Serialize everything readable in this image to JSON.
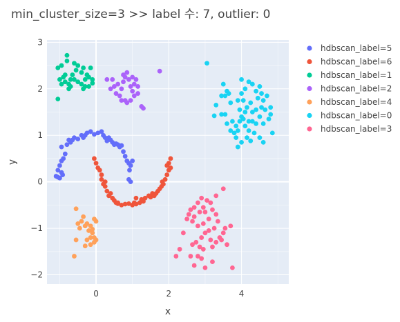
{
  "chart_data": {
    "type": "scatter",
    "title": "min_cluster_size=3 >> label 수: 7, outlier: 0",
    "xlabel": "x",
    "ylabel": "y",
    "xlim": [
      -1.35,
      5.3
    ],
    "ylim": [
      -2.2,
      3.05
    ],
    "xticks": [
      0,
      2,
      4
    ],
    "yticks": [
      -2,
      -1,
      0,
      1,
      2,
      3
    ],
    "grid": true,
    "legend_position": "right",
    "series": [
      {
        "name": "hdbscan_label=5",
        "color": "#636efa",
        "points": [
          [
            -0.95,
            0.75
          ],
          [
            -1.0,
            0.35
          ],
          [
            -0.95,
            0.45
          ],
          [
            -0.9,
            0.5
          ],
          [
            -0.85,
            0.6
          ],
          [
            -0.8,
            0.8
          ],
          [
            -0.75,
            0.9
          ],
          [
            -0.7,
            0.85
          ],
          [
            -0.65,
            0.9
          ],
          [
            -0.6,
            0.95
          ],
          [
            -0.5,
            0.92
          ],
          [
            -0.4,
            1.0
          ],
          [
            -0.35,
            0.95
          ],
          [
            -0.3,
            1.0
          ],
          [
            -0.25,
            1.05
          ],
          [
            -0.15,
            1.08
          ],
          [
            -0.05,
            1.02
          ],
          [
            0.05,
            1.05
          ],
          [
            0.15,
            1.08
          ],
          [
            0.2,
            1.0
          ],
          [
            0.25,
            0.95
          ],
          [
            0.3,
            0.88
          ],
          [
            0.35,
            0.95
          ],
          [
            0.4,
            0.9
          ],
          [
            0.45,
            0.85
          ],
          [
            0.5,
            0.8
          ],
          [
            0.55,
            0.82
          ],
          [
            0.6,
            0.8
          ],
          [
            0.65,
            0.75
          ],
          [
            0.7,
            0.78
          ],
          [
            0.75,
            0.65
          ],
          [
            0.8,
            0.55
          ],
          [
            0.85,
            0.45
          ],
          [
            0.9,
            0.4
          ],
          [
            0.95,
            0.35
          ],
          [
            1.0,
            0.45
          ],
          [
            -1.05,
            0.1
          ],
          [
            -1.0,
            0.08
          ],
          [
            -1.1,
            0.12
          ],
          [
            -1.05,
            0.25
          ],
          [
            -0.95,
            0.2
          ],
          [
            -0.92,
            0.15
          ],
          [
            0.9,
            0.05
          ],
          [
            0.95,
            0.0
          ],
          [
            0.92,
            0.25
          ]
        ]
      },
      {
        "name": "hdbscan_label=6",
        "color": "#ef553b",
        "points": [
          [
            -0.05,
            0.5
          ],
          [
            0.0,
            0.4
          ],
          [
            0.05,
            0.3
          ],
          [
            0.1,
            0.25
          ],
          [
            0.15,
            0.15
          ],
          [
            0.15,
            0.05
          ],
          [
            0.2,
            -0.05
          ],
          [
            0.25,
            -0.1
          ],
          [
            0.3,
            -0.2
          ],
          [
            0.35,
            -0.3
          ],
          [
            0.4,
            -0.25
          ],
          [
            0.45,
            -0.35
          ],
          [
            0.5,
            -0.4
          ],
          [
            0.55,
            -0.45
          ],
          [
            0.6,
            -0.47
          ],
          [
            0.7,
            -0.5
          ],
          [
            0.8,
            -0.48
          ],
          [
            0.9,
            -0.47
          ],
          [
            1.0,
            -0.5
          ],
          [
            1.05,
            -0.45
          ],
          [
            1.1,
            -0.48
          ],
          [
            1.2,
            -0.45
          ],
          [
            1.25,
            -0.38
          ],
          [
            1.3,
            -0.42
          ],
          [
            1.35,
            -0.35
          ],
          [
            1.45,
            -0.3
          ],
          [
            1.5,
            -0.33
          ],
          [
            1.55,
            -0.25
          ],
          [
            1.6,
            -0.3
          ],
          [
            1.65,
            -0.25
          ],
          [
            1.7,
            -0.2
          ],
          [
            1.75,
            -0.15
          ],
          [
            1.8,
            -0.1
          ],
          [
            1.85,
            -0.05
          ],
          [
            1.82,
            0.0
          ],
          [
            1.9,
            0.05
          ],
          [
            1.95,
            0.15
          ],
          [
            2.0,
            0.25
          ],
          [
            2.05,
            0.3
          ],
          [
            2.0,
            0.4
          ],
          [
            2.05,
            0.5
          ],
          [
            1.95,
            0.35
          ],
          [
            0.25,
            0.0
          ],
          [
            0.6,
            -0.45
          ],
          [
            1.1,
            -0.35
          ]
        ]
      },
      {
        "name": "hdbscan_label=1",
        "color": "#00cc96",
        "points": [
          [
            -0.8,
            2.72
          ],
          [
            -1.05,
            2.45
          ],
          [
            -0.95,
            2.5
          ],
          [
            -0.9,
            2.25
          ],
          [
            -1.0,
            2.2
          ],
          [
            -0.85,
            2.15
          ],
          [
            -0.75,
            2.1
          ],
          [
            -0.7,
            2.2
          ],
          [
            -0.65,
            2.3
          ],
          [
            -0.6,
            2.2
          ],
          [
            -0.55,
            2.4
          ],
          [
            -0.5,
            2.5
          ],
          [
            -0.4,
            2.35
          ],
          [
            -0.35,
            2.45
          ],
          [
            -0.3,
            2.2
          ],
          [
            -0.25,
            2.3
          ],
          [
            -0.2,
            2.25
          ],
          [
            -0.15,
            2.45
          ],
          [
            -0.1,
            2.12
          ],
          [
            -0.1,
            2.2
          ],
          [
            -0.2,
            2.05
          ],
          [
            -0.35,
            2.0
          ],
          [
            -0.4,
            2.1
          ],
          [
            -0.7,
            2.05
          ],
          [
            -0.75,
            2.0
          ],
          [
            -0.95,
            2.1
          ],
          [
            -1.05,
            1.78
          ],
          [
            -0.8,
            2.6
          ],
          [
            -0.6,
            2.55
          ],
          [
            -0.3,
            2.05
          ],
          [
            -0.5,
            2.15
          ],
          [
            -0.85,
            2.3
          ]
        ]
      },
      {
        "name": "hdbscan_label=2",
        "color": "#ab63fa",
        "points": [
          [
            0.75,
            2.3
          ],
          [
            0.85,
            2.35
          ],
          [
            0.8,
            2.25
          ],
          [
            0.9,
            2.2
          ],
          [
            1.0,
            2.25
          ],
          [
            1.1,
            2.2
          ],
          [
            1.05,
            2.1
          ],
          [
            0.95,
            2.05
          ],
          [
            1.0,
            1.95
          ],
          [
            0.7,
            2.0
          ],
          [
            0.6,
            2.1
          ],
          [
            0.5,
            2.05
          ],
          [
            0.4,
            2.0
          ],
          [
            0.45,
            2.2
          ],
          [
            0.55,
            1.9
          ],
          [
            0.65,
            1.85
          ],
          [
            0.8,
            1.75
          ],
          [
            0.85,
            1.7
          ],
          [
            0.95,
            1.75
          ],
          [
            0.7,
            1.75
          ],
          [
            1.15,
            2.05
          ],
          [
            1.15,
            1.9
          ],
          [
            1.3,
            1.58
          ],
          [
            1.25,
            1.62
          ],
          [
            1.75,
            2.38
          ],
          [
            0.3,
            2.2
          ],
          [
            0.75,
            2.15
          ],
          [
            1.05,
            1.85
          ]
        ]
      },
      {
        "name": "hdbscan_label=4",
        "color": "#ffa15a",
        "points": [
          [
            -0.55,
            -0.58
          ],
          [
            -0.35,
            -0.75
          ],
          [
            -0.4,
            -0.85
          ],
          [
            -0.5,
            -0.9
          ],
          [
            -0.45,
            -1.0
          ],
          [
            -0.3,
            -0.95
          ],
          [
            -0.25,
            -0.9
          ],
          [
            -0.2,
            -1.05
          ],
          [
            -0.15,
            -0.95
          ],
          [
            -0.1,
            -1.1
          ],
          [
            -0.05,
            -1.2
          ],
          [
            0.0,
            -1.25
          ],
          [
            -0.05,
            -0.8
          ],
          [
            0.0,
            -0.85
          ],
          [
            -0.15,
            -1.2
          ],
          [
            -0.25,
            -1.25
          ],
          [
            -0.3,
            -1.38
          ],
          [
            -0.15,
            -1.35
          ],
          [
            -0.05,
            -1.3
          ],
          [
            -0.55,
            -1.25
          ],
          [
            -0.6,
            -1.6
          ],
          [
            -0.1,
            -1.02
          ]
        ]
      },
      {
        "name": "hdbscan_label=0",
        "color": "#19d3f3",
        "points": [
          [
            3.05,
            2.55
          ],
          [
            3.5,
            2.1
          ],
          [
            3.6,
            1.95
          ],
          [
            3.55,
            1.85
          ],
          [
            3.45,
            1.85
          ],
          [
            3.7,
            1.7
          ],
          [
            3.9,
            1.75
          ],
          [
            4.0,
            1.9
          ],
          [
            4.1,
            2.0
          ],
          [
            4.2,
            2.15
          ],
          [
            4.3,
            2.1
          ],
          [
            4.4,
            1.95
          ],
          [
            4.5,
            2.05
          ],
          [
            4.55,
            1.9
          ],
          [
            4.6,
            1.75
          ],
          [
            4.7,
            1.85
          ],
          [
            4.8,
            1.6
          ],
          [
            4.8,
            1.45
          ],
          [
            4.75,
            1.35
          ],
          [
            4.6,
            1.25
          ],
          [
            4.65,
            1.55
          ],
          [
            4.5,
            1.4
          ],
          [
            4.4,
            1.55
          ],
          [
            4.3,
            1.5
          ],
          [
            4.2,
            1.3
          ],
          [
            4.1,
            1.2
          ],
          [
            4.0,
            1.4
          ],
          [
            3.95,
            1.55
          ],
          [
            3.9,
            1.1
          ],
          [
            3.85,
            1.2
          ],
          [
            3.8,
            1.05
          ],
          [
            3.7,
            1.1
          ],
          [
            3.75,
            1.3
          ],
          [
            3.6,
            1.25
          ],
          [
            3.55,
            1.45
          ],
          [
            3.45,
            1.45
          ],
          [
            3.3,
            1.65
          ],
          [
            3.25,
            1.42
          ],
          [
            4.05,
            1.35
          ],
          [
            4.2,
            1.1
          ],
          [
            4.35,
            1.05
          ],
          [
            4.4,
            1.25
          ],
          [
            4.15,
            0.95
          ],
          [
            4.0,
            0.85
          ],
          [
            3.9,
            0.75
          ],
          [
            3.85,
            0.95
          ],
          [
            4.25,
            0.88
          ],
          [
            4.5,
            0.95
          ],
          [
            4.6,
            0.85
          ],
          [
            4.85,
            1.05
          ],
          [
            4.05,
            1.75
          ],
          [
            4.25,
            1.7
          ],
          [
            4.45,
            1.8
          ],
          [
            4.15,
            1.6
          ],
          [
            3.95,
            1.3
          ],
          [
            4.1,
            1.5
          ],
          [
            4.3,
            1.3
          ],
          [
            4.0,
            2.2
          ],
          [
            4.55,
            1.6
          ],
          [
            3.65,
            1.9
          ]
        ]
      },
      {
        "name": "hdbscan_label=3",
        "color": "#ff6692",
        "points": [
          [
            3.5,
            -0.15
          ],
          [
            3.3,
            -0.3
          ],
          [
            3.15,
            -0.45
          ],
          [
            2.9,
            -0.35
          ],
          [
            2.8,
            -0.45
          ],
          [
            3.05,
            -0.4
          ],
          [
            2.95,
            -0.55
          ],
          [
            3.0,
            -0.65
          ],
          [
            2.85,
            -0.65
          ],
          [
            2.7,
            -0.55
          ],
          [
            2.6,
            -0.6
          ],
          [
            2.55,
            -0.7
          ],
          [
            2.5,
            -0.8
          ],
          [
            2.65,
            -0.85
          ],
          [
            2.7,
            -0.75
          ],
          [
            2.8,
            -0.95
          ],
          [
            2.95,
            -0.9
          ],
          [
            3.1,
            -0.8
          ],
          [
            3.2,
            -0.6
          ],
          [
            3.3,
            -0.7
          ],
          [
            3.35,
            -0.85
          ],
          [
            3.25,
            -1.0
          ],
          [
            3.1,
            -1.05
          ],
          [
            3.0,
            -1.1
          ],
          [
            2.9,
            -1.2
          ],
          [
            3.15,
            -1.25
          ],
          [
            3.3,
            -1.3
          ],
          [
            3.4,
            -1.2
          ],
          [
            3.5,
            -1.1
          ],
          [
            3.55,
            -1.0
          ],
          [
            3.7,
            -0.95
          ],
          [
            3.45,
            -1.25
          ],
          [
            3.6,
            -1.35
          ],
          [
            2.75,
            -1.3
          ],
          [
            2.65,
            -1.35
          ],
          [
            2.85,
            -1.4
          ],
          [
            2.95,
            -1.45
          ],
          [
            2.8,
            -1.6
          ],
          [
            2.6,
            -1.6
          ],
          [
            2.9,
            -1.65
          ],
          [
            2.7,
            -1.8
          ],
          [
            3.0,
            -1.85
          ],
          [
            3.2,
            -1.72
          ],
          [
            2.3,
            -1.45
          ],
          [
            2.2,
            -1.6
          ],
          [
            3.75,
            -1.85
          ],
          [
            2.4,
            -1.1
          ],
          [
            3.2,
            -1.4
          ]
        ]
      }
    ]
  }
}
